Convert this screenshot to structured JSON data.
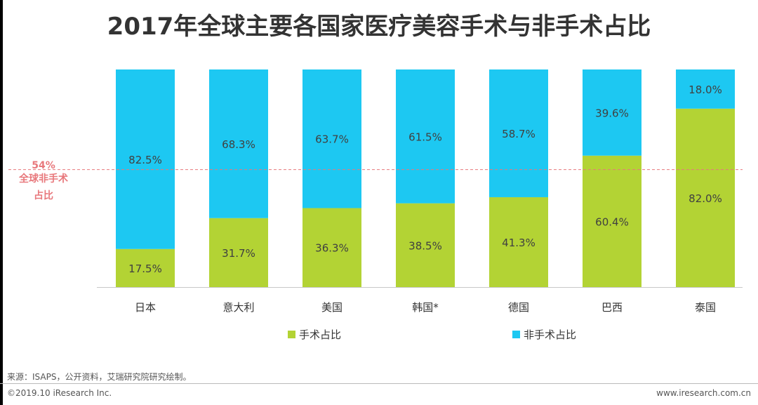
{
  "title": "2017年全球主要各国家医疗美容手术与非手术占比",
  "chart_data": {
    "type": "bar",
    "stacked": true,
    "percent_stacked": true,
    "title": "2017年全球主要各国家医疗美容手术与非手术占比",
    "categories": [
      "日本",
      "意大利",
      "美国",
      "韩国*",
      "德国",
      "巴西",
      "泰国"
    ],
    "series": [
      {
        "name": "手术占比",
        "color": "#b3d334",
        "values": [
          17.5,
          31.7,
          36.3,
          38.5,
          41.3,
          60.4,
          82.0
        ],
        "labels": [
          "17.5%",
          "31.7%",
          "36.3%",
          "38.5%",
          "41.3%",
          "60.4%",
          "82.0%"
        ]
      },
      {
        "name": "非手术占比",
        "color": "#1dc8f2",
        "values": [
          82.5,
          68.3,
          63.7,
          61.5,
          58.7,
          39.6,
          18.0
        ],
        "labels": [
          "82.5%",
          "68.3%",
          "63.7%",
          "61.5%",
          "58.7%",
          "39.6%",
          "18.0%"
        ]
      }
    ],
    "ylim": [
      0,
      100
    ],
    "reference_line": {
      "value": 54,
      "label_value": "54%",
      "label_line1": "全球非手术",
      "label_line2": "占比",
      "color": "#e8787c"
    },
    "legend_position": "bottom-center"
  },
  "source": "来源：ISAPS，公开资料，艾瑞研究院研究绘制。",
  "copyright": "©2019.10 iResearch Inc.",
  "website": "www.iresearch.com.cn"
}
